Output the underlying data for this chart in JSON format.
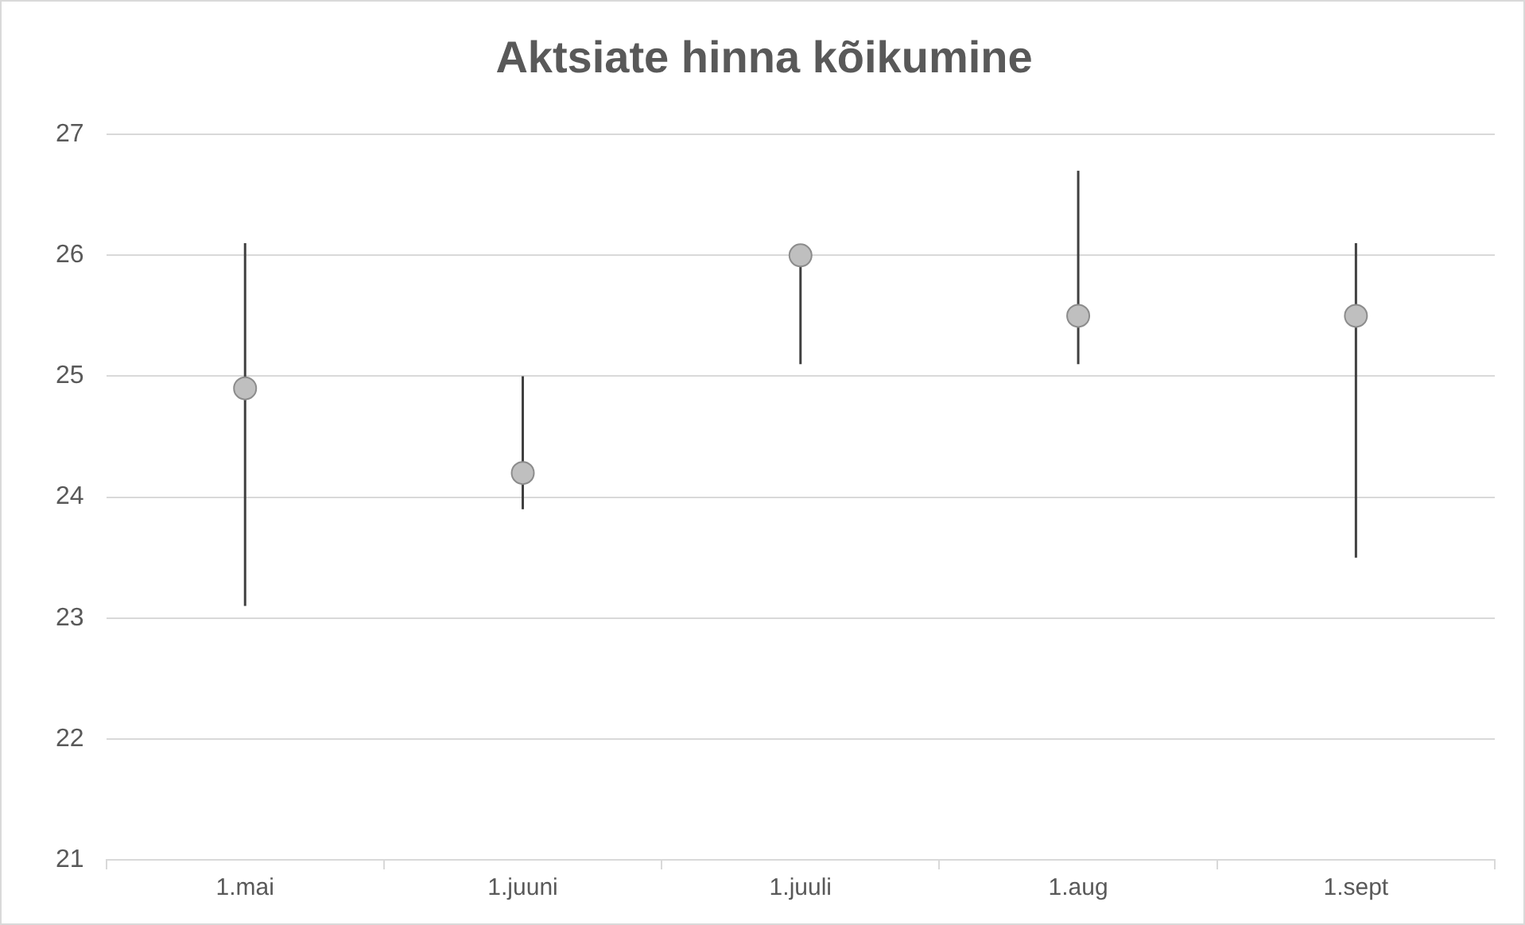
{
  "chart_data": {
    "type": "scatter",
    "title": "Aktsiate hinna kõikumine",
    "categories": [
      "1.mai",
      "1.juuni",
      "1.juuli",
      "1.aug",
      "1.sept"
    ],
    "values": [
      24.9,
      24.2,
      26.0,
      25.5,
      25.5
    ],
    "errors": [
      [
        23.1,
        26.1
      ],
      [
        23.9,
        25.0
      ],
      [
        25.1,
        26.0
      ],
      [
        25.1,
        26.7
      ],
      [
        23.5,
        26.1
      ]
    ],
    "color": "#bfbfbf",
    "ylim": [
      21,
      27
    ],
    "yticks": [
      21,
      22,
      23,
      24,
      25,
      26,
      27
    ],
    "grid": "y",
    "legend": false,
    "marker": "circle"
  }
}
